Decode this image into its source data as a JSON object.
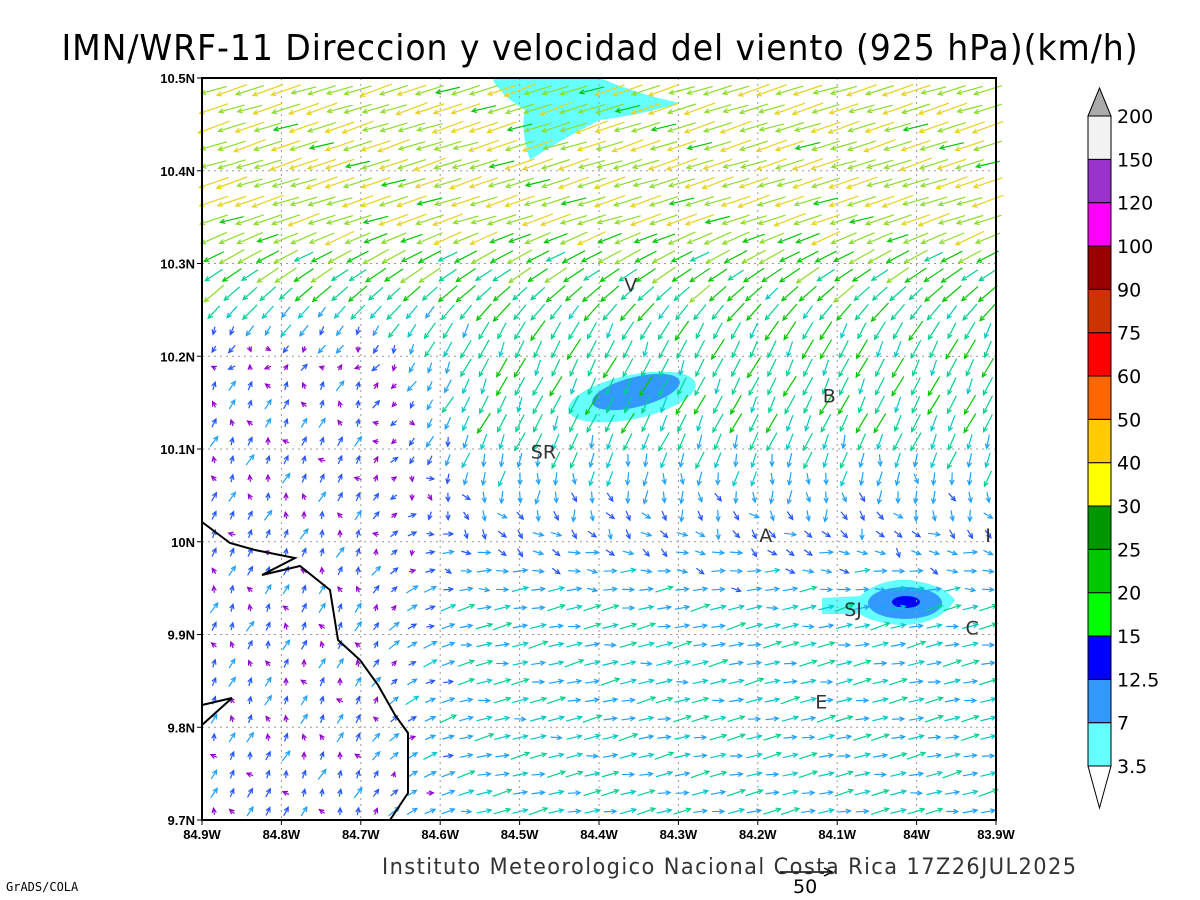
{
  "title": "IMN/WRF-11 Direccion y velocidad del viento (925 hPa)(km/h)",
  "footer": "Instituto Meteorologico Nacional Costa Rica  17Z26JUL2025",
  "software_credit": "GrADS/COLA",
  "reference_vector": {
    "label": "50",
    "speed": 50
  },
  "map": {
    "lon_range": [
      -84.9,
      -83.9
    ],
    "lat_range": [
      9.7,
      10.5
    ],
    "x_ticks": [
      "84.9W",
      "84.8W",
      "84.7W",
      "84.6W",
      "84.5W",
      "84.4W",
      "84.3W",
      "84.2W",
      "84.1W",
      "84W",
      "83.9W"
    ],
    "y_ticks": [
      "9.7N",
      "9.8N",
      "9.9N",
      "10N",
      "10.1N",
      "10.2N",
      "10.3N",
      "10.4N",
      "10.5N"
    ],
    "stations": [
      {
        "label": "V",
        "lon": -84.36,
        "lat": 10.27
      },
      {
        "label": "B",
        "lon": -84.11,
        "lat": 10.15
      },
      {
        "label": "SR",
        "lon": -84.47,
        "lat": 10.09
      },
      {
        "label": "A",
        "lon": -84.19,
        "lat": 10.0
      },
      {
        "label": "SJ",
        "lon": -84.08,
        "lat": 9.92
      },
      {
        "label": "C",
        "lon": -83.93,
        "lat": 9.9
      },
      {
        "label": "E",
        "lon": -84.12,
        "lat": 9.82
      },
      {
        "label": "I",
        "lon": -83.91,
        "lat": 10.0
      }
    ]
  },
  "colorbar": {
    "labels": [
      "3.5",
      "7",
      "12.5",
      "15",
      "20",
      "25",
      "30",
      "40",
      "50",
      "60",
      "75",
      "90",
      "100",
      "120",
      "150",
      "200"
    ],
    "colors": [
      "#66ffff",
      "#3399ff",
      "#0000ff",
      "#00ff00",
      "#00c800",
      "#009600",
      "#ffff00",
      "#ffcc00",
      "#ff6600",
      "#ff0000",
      "#cc3300",
      "#990000",
      "#ff00ff",
      "#9933cc",
      "#f2f2f2"
    ],
    "over_color": "#aaaaaa",
    "under_color": "#ffffff"
  }
}
